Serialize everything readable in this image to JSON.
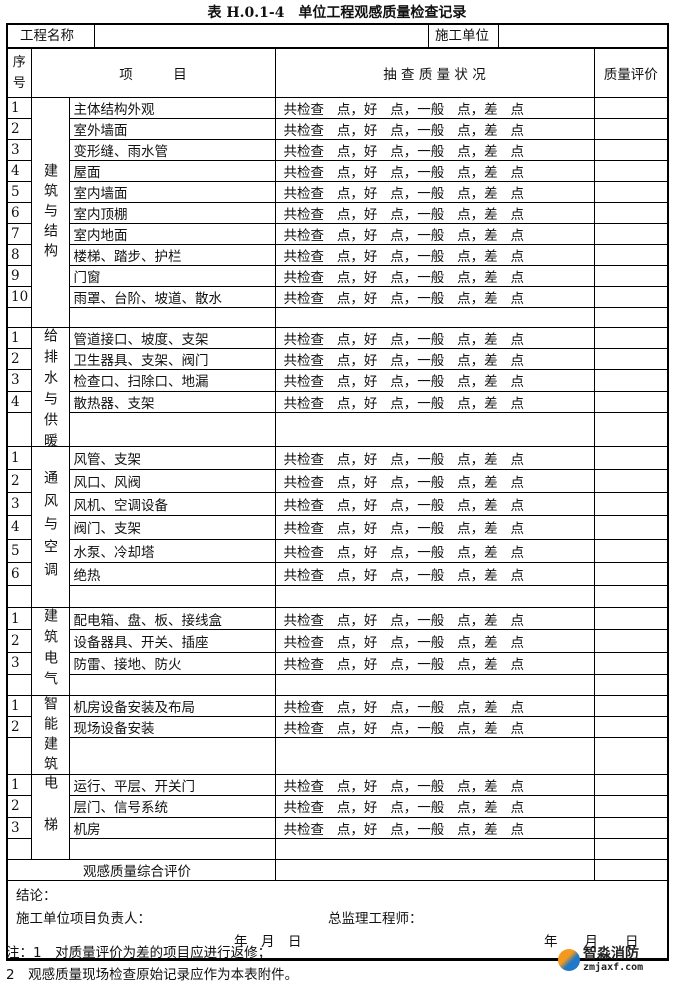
{
  "title": "表 H.0.1-4　单位工程观感质量检查记录",
  "header": {
    "project_name_label": "工程名称",
    "project_name_value": "",
    "contractor_label": "施工单位",
    "contractor_value": ""
  },
  "columns": {
    "seq": "序号",
    "item": "项　　　目",
    "check": "抽 查 质 量 状 况",
    "eval": "质量评价"
  },
  "check_text": "共检查   点，好   点，一般   点，差   点",
  "sections": [
    {
      "category": "建筑与结构",
      "items": [
        "主体结构外观",
        "室外墙面",
        "变形缝、雨水管",
        "屋面",
        "室内墙面",
        "室内顶棚",
        "室内地面",
        "楼梯、踏步、护栏",
        "门窗",
        "雨罩、台阶、坡道、散水"
      ]
    },
    {
      "category": "给排水与供暖",
      "items": [
        "管道接口、坡度、支架",
        "卫生器具、支架、阀门",
        "检查口、扫除口、地漏",
        "散热器、支架"
      ]
    },
    {
      "category": "通风与空调",
      "items": [
        "风管、支架",
        "风口、风阀",
        "风机、空调设备",
        "阀门、支架",
        "水泵、冷却塔",
        "绝热"
      ]
    },
    {
      "category": "建筑电气",
      "items": [
        "配电箱、盘、板、接线盒",
        "设备器具、开关、插座",
        "防雷、接地、防火"
      ]
    },
    {
      "category": "智能建筑",
      "items": [
        "机房设备安装及布局",
        "现场设备安装"
      ]
    },
    {
      "category": "电梯",
      "items": [
        "运行、平层、开关门",
        "层门、信号系统",
        "机房"
      ]
    }
  ],
  "summary_label": "观感质量综合评价",
  "conclusion": {
    "label": "结论：",
    "contractor_sign": "施工单位项目负责人：",
    "supervisor_sign": "总监理工程师：",
    "date1": "年　月　日",
    "date2": "年　　月　　日"
  },
  "notes": [
    "注：1　对质量评价为差的项目应进行返修；",
    "2　观感质量现场检查原始记录应作为本表附件。"
  ],
  "logo": {
    "name": "智淼消防",
    "url": "zmjaxf.com"
  }
}
